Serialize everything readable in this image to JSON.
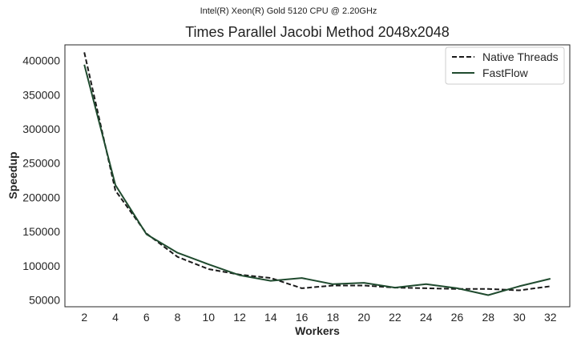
{
  "suptitle": "Intel(R) Xeon(R) Gold 5120 CPU @ 2.20GHz",
  "chart_data": {
    "type": "line",
    "title": "Times Parallel Jacobi Method 2048x2048",
    "xlabel": "Workers",
    "ylabel": "Speedup",
    "x": [
      2,
      4,
      6,
      8,
      10,
      12,
      14,
      16,
      18,
      20,
      22,
      24,
      26,
      28,
      30,
      32
    ],
    "xticks": [
      "2",
      "4",
      "6",
      "8",
      "10",
      "12",
      "14",
      "16",
      "18",
      "20",
      "22",
      "24",
      "26",
      "28",
      "30",
      "32"
    ],
    "yticks": [
      "50000",
      "100000",
      "150000",
      "200000",
      "250000",
      "300000",
      "350000",
      "400000"
    ],
    "ytick_values": [
      50000,
      100000,
      150000,
      200000,
      250000,
      300000,
      350000,
      400000
    ],
    "xlim": [
      0.75,
      33.25
    ],
    "ylim": [
      40000,
      423000
    ],
    "grid": false,
    "legend_position": "top-right",
    "series": [
      {
        "name": "Native Threads",
        "style": "dashed",
        "color": "#1a1a1a",
        "values": [
          412000,
          210000,
          147000,
          113000,
          95000,
          87000,
          82000,
          67000,
          71000,
          71000,
          68000,
          67000,
          66000,
          66000,
          64000,
          70000
        ]
      },
      {
        "name": "FastFlow",
        "style": "solid",
        "color": "#1f4a2e",
        "values": [
          394000,
          218000,
          146000,
          119000,
          102000,
          86000,
          78000,
          82000,
          73000,
          75000,
          68000,
          73000,
          67000,
          57000,
          70000,
          81000
        ]
      }
    ]
  }
}
